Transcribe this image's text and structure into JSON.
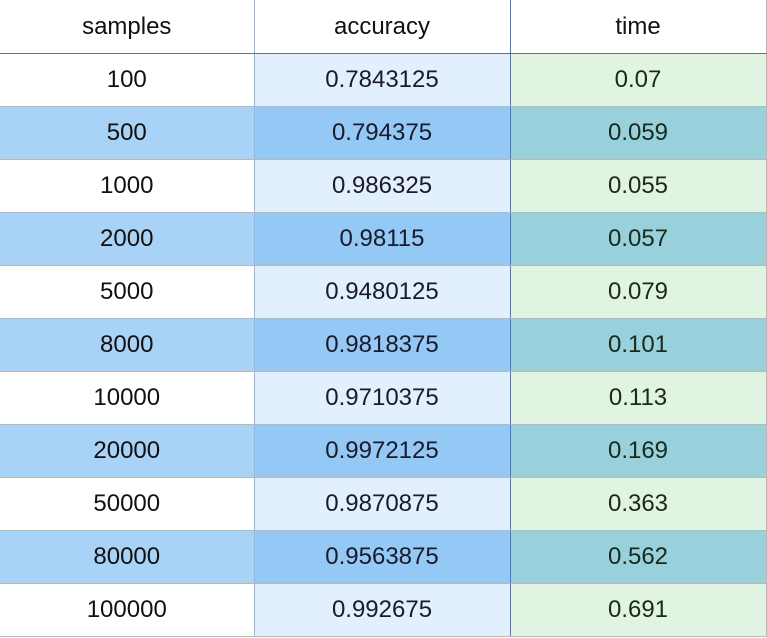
{
  "chart_data": {
    "type": "table",
    "columns": [
      "samples",
      "accuracy",
      "time"
    ],
    "rows": [
      [
        "100",
        "0.7843125",
        "0.07"
      ],
      [
        "500",
        "0.794375",
        "0.059"
      ],
      [
        "1000",
        "0.986325",
        "0.055"
      ],
      [
        "2000",
        "0.98115",
        "0.057"
      ],
      [
        "5000",
        "0.9480125",
        "0.079"
      ],
      [
        "8000",
        "0.9818375",
        "0.101"
      ],
      [
        "10000",
        "0.9710375",
        "0.113"
      ],
      [
        "20000",
        "0.9972125",
        "0.169"
      ],
      [
        "50000",
        "0.9870875",
        "0.363"
      ],
      [
        "80000",
        "0.9563875",
        "0.562"
      ],
      [
        "100000",
        "0.992675",
        "0.691"
      ]
    ]
  },
  "colors": {
    "odd_row": [
      "#ffffff",
      "#e2effc",
      "#e1f4e2"
    ],
    "even_row": [
      "#a9d2f7",
      "#94c8f5",
      "#98d0dc"
    ]
  }
}
